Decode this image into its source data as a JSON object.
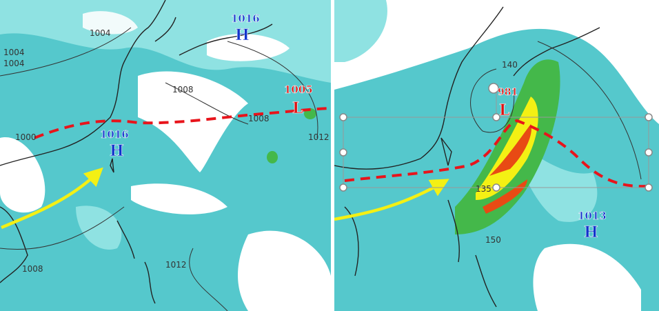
{
  "left_panel": {
    "labels": [
      "1004",
      "1004",
      "1004",
      "1016",
      "H",
      "1008",
      "1005",
      "L",
      "1008",
      "1000",
      "1016",
      "H",
      "1012",
      "1008",
      "1012"
    ]
  },
  "right_panel": {
    "labels": [
      "140",
      "981",
      "L",
      "135",
      "1013",
      "H",
      "150"
    ]
  }
}
